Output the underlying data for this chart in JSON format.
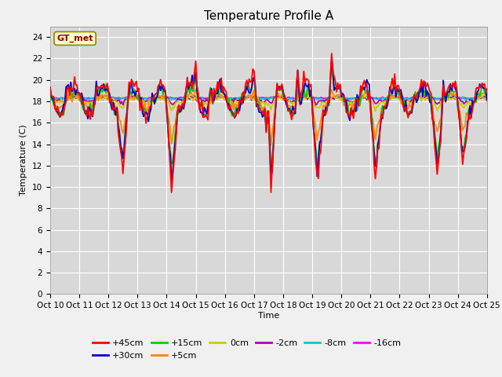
{
  "title": "Temperature Profile A",
  "xlabel": "Time",
  "ylabel": "Temperature (C)",
  "xlim": [
    0,
    360
  ],
  "ylim": [
    0,
    25
  ],
  "yticks": [
    0,
    2,
    4,
    6,
    8,
    10,
    12,
    14,
    16,
    18,
    20,
    22,
    24
  ],
  "xtick_positions": [
    0,
    24,
    48,
    72,
    96,
    120,
    144,
    168,
    192,
    216,
    240,
    264,
    288,
    312,
    336,
    360
  ],
  "xtick_labels": [
    "Oct 10",
    "Oct 11",
    "Oct 12",
    "Oct 13",
    "Oct 14",
    "Oct 15",
    "Oct 16",
    "Oct 17",
    "Oct 18",
    "Oct 19",
    "Oct 20",
    "Oct 21",
    "Oct 22",
    "Oct 23",
    "Oct 24",
    "Oct 25"
  ],
  "series_colors": {
    "+45cm": "#ff0000",
    "+30cm": "#0000cc",
    "+15cm": "#00cc00",
    "+5cm": "#ff8800",
    "0cm": "#cccc00",
    "-2cm": "#aa00aa",
    "-8cm": "#00cccc",
    "-16cm": "#ff00ff"
  },
  "legend_label": "GT_met",
  "bg_color": "#d8d8d8",
  "fig_bg": "#f0f0f0",
  "grid_color": "#ffffff",
  "title_fontsize": 11,
  "axis_fontsize": 8,
  "tick_fontsize": 7.5
}
